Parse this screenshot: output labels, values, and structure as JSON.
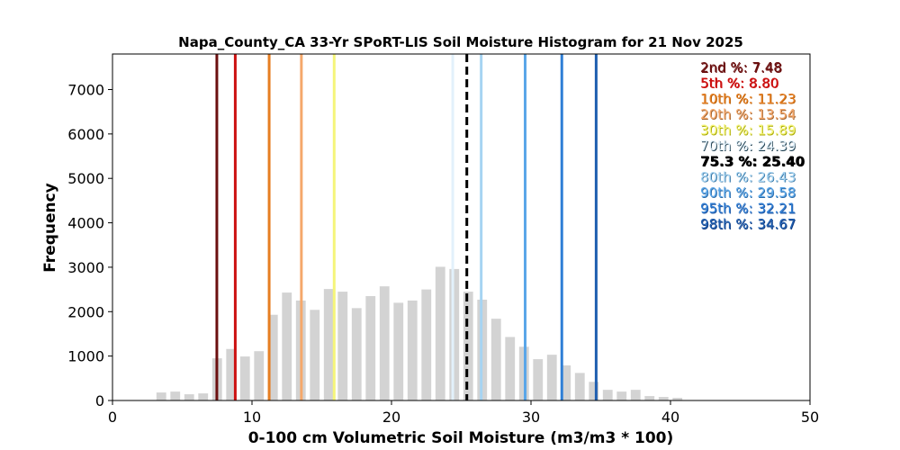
{
  "chart_data": {
    "type": "bar",
    "title": "Napa_County_CA 33-Yr SPoRT-LIS Soil Moisture Histogram for 21 Nov 2025",
    "xlabel": "0-100 cm Volumetric Soil Moisture (m3/m3 * 100)",
    "ylabel": "Frequency",
    "xlim": [
      0,
      50
    ],
    "ylim": [
      0,
      7800
    ],
    "x_ticks": [
      0,
      10,
      20,
      30,
      40,
      50
    ],
    "y_ticks": [
      0,
      1000,
      2000,
      3000,
      4000,
      5000,
      6000,
      7000
    ],
    "grid": false,
    "bar_color": "#d3d3d3",
    "bin_width": 1,
    "bins": [
      {
        "x": 3.5,
        "value": 180
      },
      {
        "x": 4.5,
        "value": 200
      },
      {
        "x": 5.5,
        "value": 140
      },
      {
        "x": 6.5,
        "value": 160
      },
      {
        "x": 7.5,
        "value": 950
      },
      {
        "x": 8.5,
        "value": 1160
      },
      {
        "x": 9.5,
        "value": 990
      },
      {
        "x": 10.5,
        "value": 1110
      },
      {
        "x": 11.5,
        "value": 1930
      },
      {
        "x": 12.5,
        "value": 2430
      },
      {
        "x": 13.5,
        "value": 2250
      },
      {
        "x": 14.5,
        "value": 2040
      },
      {
        "x": 15.5,
        "value": 2510
      },
      {
        "x": 16.5,
        "value": 2450
      },
      {
        "x": 17.5,
        "value": 2080
      },
      {
        "x": 18.5,
        "value": 2350
      },
      {
        "x": 19.5,
        "value": 2570
      },
      {
        "x": 20.5,
        "value": 2200
      },
      {
        "x": 21.5,
        "value": 2250
      },
      {
        "x": 22.5,
        "value": 2500
      },
      {
        "x": 23.5,
        "value": 3010
      },
      {
        "x": 24.5,
        "value": 2960
      },
      {
        "x": 25.5,
        "value": 2450
      },
      {
        "x": 26.5,
        "value": 2270
      },
      {
        "x": 27.5,
        "value": 1840
      },
      {
        "x": 28.5,
        "value": 1430
      },
      {
        "x": 29.5,
        "value": 1210
      },
      {
        "x": 30.5,
        "value": 930
      },
      {
        "x": 31.5,
        "value": 1030
      },
      {
        "x": 32.5,
        "value": 790
      },
      {
        "x": 33.5,
        "value": 620
      },
      {
        "x": 34.5,
        "value": 420
      },
      {
        "x": 35.5,
        "value": 240
      },
      {
        "x": 36.5,
        "value": 200
      },
      {
        "x": 37.5,
        "value": 240
      },
      {
        "x": 38.5,
        "value": 100
      },
      {
        "x": 39.5,
        "value": 80
      },
      {
        "x": 40.5,
        "value": 60
      }
    ],
    "percentiles": [
      {
        "label": "2nd %: 7.48",
        "x": 7.48,
        "color": "#6b0f0f",
        "style": "solid"
      },
      {
        "label": "5th %: 8.80",
        "x": 8.8,
        "color": "#cc1111",
        "style": "solid"
      },
      {
        "label": "10th %: 11.23",
        "x": 11.23,
        "color": "#e67e22",
        "style": "solid"
      },
      {
        "label": "20th %: 13.54",
        "x": 13.54,
        "color": "#f5a86b",
        "style": "solid"
      },
      {
        "label": "30th %: 15.89",
        "x": 15.89,
        "color": "#f5f57a",
        "style": "solid"
      },
      {
        "label": "70th %: 24.39",
        "x": 24.39,
        "color": "#e2f1fb",
        "style": "solid"
      },
      {
        "label": "75.3 %: 25.40",
        "x": 25.4,
        "color": "#000000",
        "style": "dashed"
      },
      {
        "label": "80th %: 26.43",
        "x": 26.43,
        "color": "#a6d4f2",
        "style": "solid"
      },
      {
        "label": "90th %: 29.58",
        "x": 29.58,
        "color": "#5aa6e8",
        "style": "solid"
      },
      {
        "label": "95th %: 32.21",
        "x": 32.21,
        "color": "#2f7fd6",
        "style": "solid"
      },
      {
        "label": "98th %: 34.67",
        "x": 34.67,
        "color": "#1f5fb0",
        "style": "solid"
      }
    ],
    "label_shadow_colors": [
      "#6b0f0f",
      "#cc1111",
      "#b35a00",
      "#a0602a",
      "#a8a800",
      "#1a3a4a",
      "#000000",
      "#2a6a9a",
      "#2a6aa8",
      "#1f55a0",
      "#0f3a80"
    ]
  }
}
